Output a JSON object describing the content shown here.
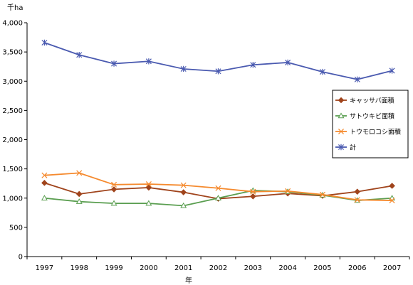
{
  "chart_data": {
    "type": "line",
    "title": "",
    "unit_label": "千ha",
    "xlabel": "年",
    "ylabel": "",
    "ylim": [
      0,
      4000
    ],
    "yticks": [
      0,
      500,
      1000,
      1500,
      2000,
      2500,
      3000,
      3500,
      4000
    ],
    "ytick_labels": [
      "0",
      "500",
      "1,000",
      "1,500",
      "2,000",
      "2,500",
      "3,000",
      "3,500",
      "4,000"
    ],
    "categories": [
      "1997",
      "1998",
      "1999",
      "2000",
      "2001",
      "2002",
      "2003",
      "2004",
      "2005",
      "2006",
      "2007"
    ],
    "grid": false,
    "legend_position": "right",
    "series": [
      {
        "name": "キャッサバ面積",
        "color": "#a0441c",
        "marker": "diamond",
        "values": [
          1260,
          1070,
          1150,
          1180,
          1100,
          990,
          1030,
          1080,
          1040,
          1110,
          1210
        ]
      },
      {
        "name": "サトウキビ面積",
        "color": "#5a9e50",
        "marker": "triangle",
        "values": [
          1000,
          940,
          910,
          910,
          870,
          1000,
          1130,
          1110,
          1050,
          960,
          1000
        ]
      },
      {
        "name": "トウモロコシ面積",
        "color": "#f58a2e",
        "marker": "x",
        "values": [
          1390,
          1430,
          1230,
          1240,
          1220,
          1170,
          1110,
          1120,
          1060,
          970,
          960
        ]
      },
      {
        "name": "計",
        "color": "#4a5ab0",
        "marker": "asterisk",
        "values": [
          3660,
          3450,
          3300,
          3340,
          3210,
          3170,
          3280,
          3320,
          3160,
          3030,
          3180
        ]
      }
    ]
  }
}
